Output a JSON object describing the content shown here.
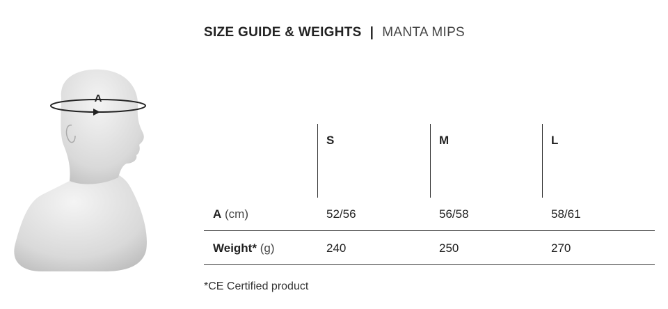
{
  "header": {
    "title": "SIZE GUIDE & WEIGHTS",
    "separator": "|",
    "subtitle": "MANTA MIPS"
  },
  "figure": {
    "label": "A"
  },
  "table": {
    "columns": [
      "S",
      "M",
      "L"
    ],
    "rows": [
      {
        "label": "A",
        "unit": "(cm)",
        "values": [
          "52/56",
          "56/58",
          "58/61"
        ]
      },
      {
        "label": "Weight*",
        "unit": "(g)",
        "values": [
          240,
          250,
          270
        ]
      }
    ]
  },
  "footnote": "*CE Certified product"
}
